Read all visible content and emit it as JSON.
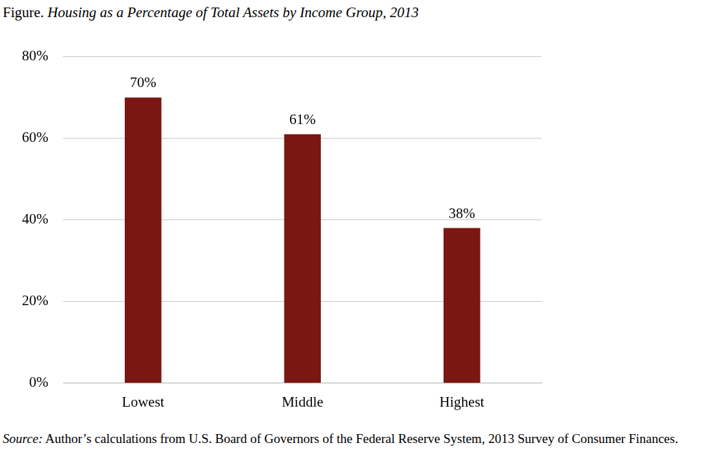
{
  "chart_data": {
    "type": "bar",
    "title": "Figure. Housing as a Percentage of Total Assets by Income Group, 2013",
    "source": "Source: Author’s calculations from U.S. Board of Governors of the Federal Reserve System, 2013 Survey of Consumer Finances.",
    "categories": [
      "Lowest",
      "Middle",
      "Highest"
    ],
    "values": [
      70,
      61,
      38
    ],
    "value_labels": [
      "70%",
      "61%",
      "38%"
    ],
    "data_labels": true,
    "color": "#7a1712",
    "ylim": [
      0,
      80
    ],
    "yticks": [
      {
        "value": 0,
        "label": "0%"
      },
      {
        "value": 20,
        "label": "20%"
      },
      {
        "value": 40,
        "label": "40%"
      },
      {
        "value": 60,
        "label": "60%"
      },
      {
        "value": 80,
        "label": "80%"
      }
    ],
    "grid": true
  }
}
